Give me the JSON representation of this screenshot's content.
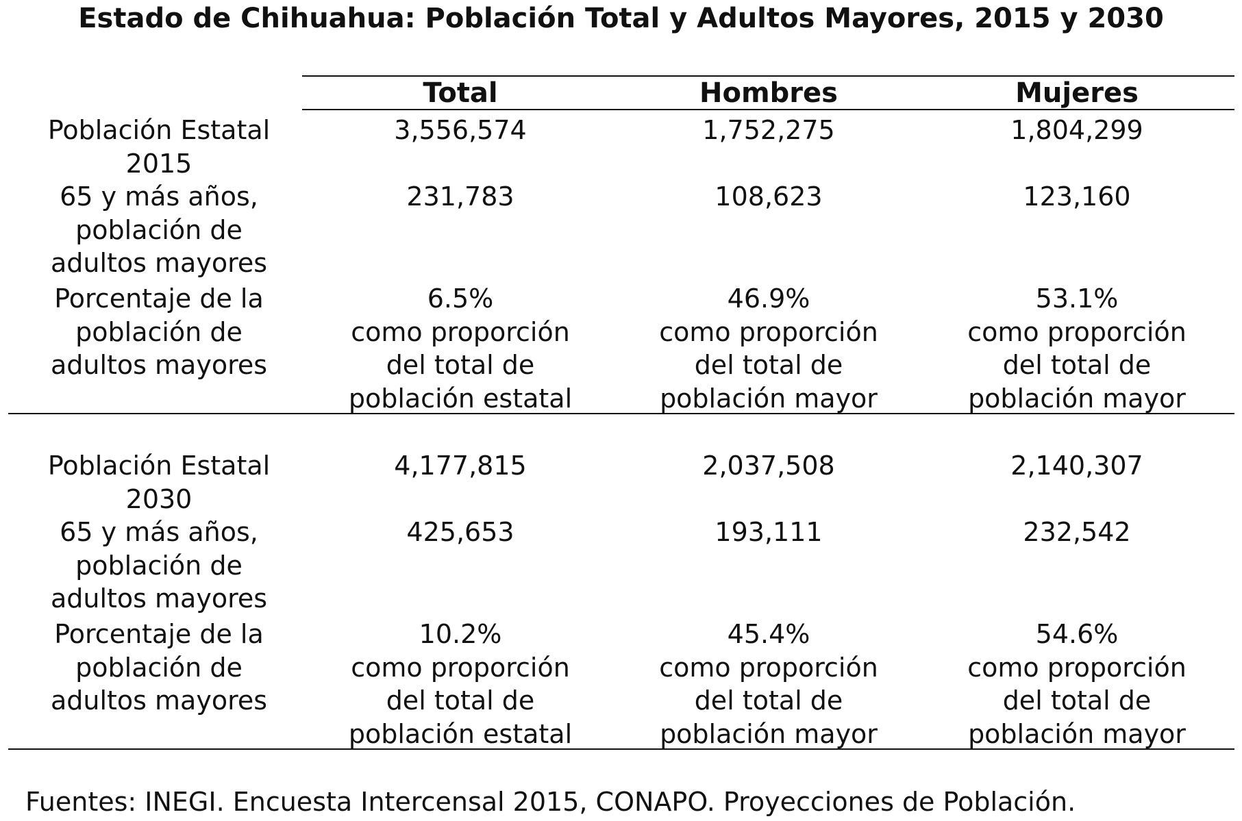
{
  "title": "Estado de Chihuahua: Población Total y Adultos Mayores, 2015 y 2030",
  "columns": [
    "Total",
    "Hombres",
    "Mujeres"
  ],
  "blocks": [
    {
      "rows": [
        {
          "label_lines": [
            "Población Estatal",
            "2015"
          ],
          "values": [
            [
              "3,556,574"
            ],
            [
              "1,752,275"
            ],
            [
              "1,804,299"
            ]
          ]
        },
        {
          "label_lines": [
            "65 y más años,",
            "población de",
            "adultos mayores"
          ],
          "values": [
            [
              "231,783"
            ],
            [
              "108,623"
            ],
            [
              "123,160"
            ]
          ]
        },
        {
          "label_lines": [
            "Porcentaje de la",
            "población de",
            "adultos mayores"
          ],
          "values": [
            [
              "6.5%",
              "como proporción",
              "del total de",
              "población estatal"
            ],
            [
              "46.9%",
              "como proporción",
              "del total de",
              "población mayor"
            ],
            [
              "53.1%",
              "como proporción",
              "del total de",
              "población mayor"
            ]
          ]
        }
      ]
    },
    {
      "rows": [
        {
          "label_lines": [
            "Población Estatal",
            "2030"
          ],
          "values": [
            [
              "4,177,815"
            ],
            [
              "2,037,508"
            ],
            [
              "2,140,307"
            ]
          ]
        },
        {
          "label_lines": [
            "65 y más años,",
            "población de",
            "adultos mayores"
          ],
          "values": [
            [
              "425,653"
            ],
            [
              "193,111"
            ],
            [
              "232,542"
            ]
          ]
        },
        {
          "label_lines": [
            "Porcentaje de la",
            "población de",
            "adultos mayores"
          ],
          "values": [
            [
              "10.2%",
              "como proporción",
              "del total de",
              "población estatal"
            ],
            [
              "45.4%",
              "como proporción",
              "del total de",
              "población mayor"
            ],
            [
              "54.6%",
              "como proporción",
              "del total de",
              "población mayor"
            ]
          ]
        }
      ]
    }
  ],
  "source": "Fuentes: INEGI. Encuesta Intercensal 2015, CONAPO. Proyecciones de Población."
}
